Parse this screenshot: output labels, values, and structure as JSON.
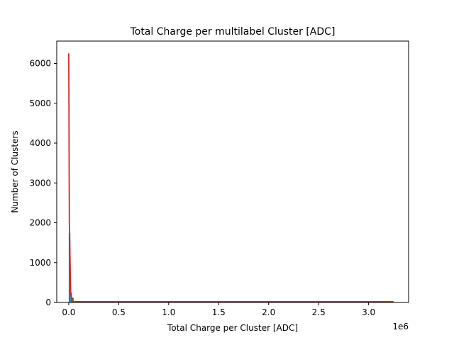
{
  "chart_data": {
    "type": "bar",
    "title": "Total Charge per multilabel Cluster [ADC]",
    "xlabel": "Total Charge per Cluster [ADC]",
    "ylabel": "Number of Clusters",
    "x_offset_label": "1e6",
    "xlim": [
      -0.12,
      3.4
    ],
    "ylim": [
      0,
      6560
    ],
    "xticks": [
      0.0,
      0.5,
      1.0,
      1.5,
      2.0,
      2.5,
      3.0
    ],
    "xtick_labels": [
      "0.0",
      "0.5",
      "1.0",
      "1.5",
      "2.0",
      "2.5",
      "3.0"
    ],
    "yticks": [
      0,
      1000,
      2000,
      3000,
      4000,
      5000,
      6000
    ],
    "ytick_labels": [
      "0",
      "1000",
      "2000",
      "3000",
      "4000",
      "5000",
      "6000"
    ],
    "grid": false,
    "series": [
      {
        "kind": "histogram",
        "color": "#1f77b4",
        "bins": [
          {
            "x0": 0.0,
            "x1": 0.0163,
            "count": 1750
          },
          {
            "x0": 0.0163,
            "x1": 0.0326,
            "count": 250
          },
          {
            "x0": 0.0326,
            "x1": 0.0489,
            "count": 120
          },
          {
            "x0": 0.0489,
            "x1": 0.0652,
            "count": 30
          }
        ]
      },
      {
        "kind": "line",
        "color": "#d62728",
        "x": [
          0.0,
          0.002,
          0.006,
          0.02,
          0.04,
          0.06,
          3.25
        ],
        "y": [
          6250,
          5000,
          2000,
          200,
          30,
          20,
          20
        ]
      }
    ]
  }
}
